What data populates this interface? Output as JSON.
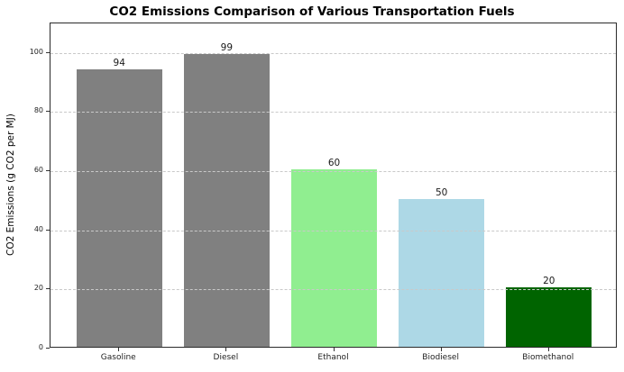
{
  "chart_data": {
    "type": "bar",
    "title": "CO2 Emissions Comparison of Various Transportation Fuels",
    "categories": [
      "Gasoline",
      "Diesel",
      "Ethanol",
      "Biodiesel",
      "Biomethanol"
    ],
    "values": [
      94,
      99,
      60,
      50,
      20
    ],
    "value_labels": [
      "94",
      "99",
      "60",
      "50",
      "20"
    ],
    "bar_colors": [
      "#808080",
      "#808080",
      "#90EE90",
      "#ADD8E6",
      "#006400"
    ],
    "xlabel": "",
    "ylabel": "CO2 Emissions (g CO2 per MJ)",
    "ylim": [
      0,
      110
    ],
    "yticks": [
      0,
      20,
      40,
      60,
      80,
      100
    ],
    "grid": {
      "axis": "y",
      "style": "dashed",
      "color": "#c9c9c9"
    },
    "legend": null,
    "background_color": "#ffffff",
    "spine_color": "#2a2a2a"
  }
}
